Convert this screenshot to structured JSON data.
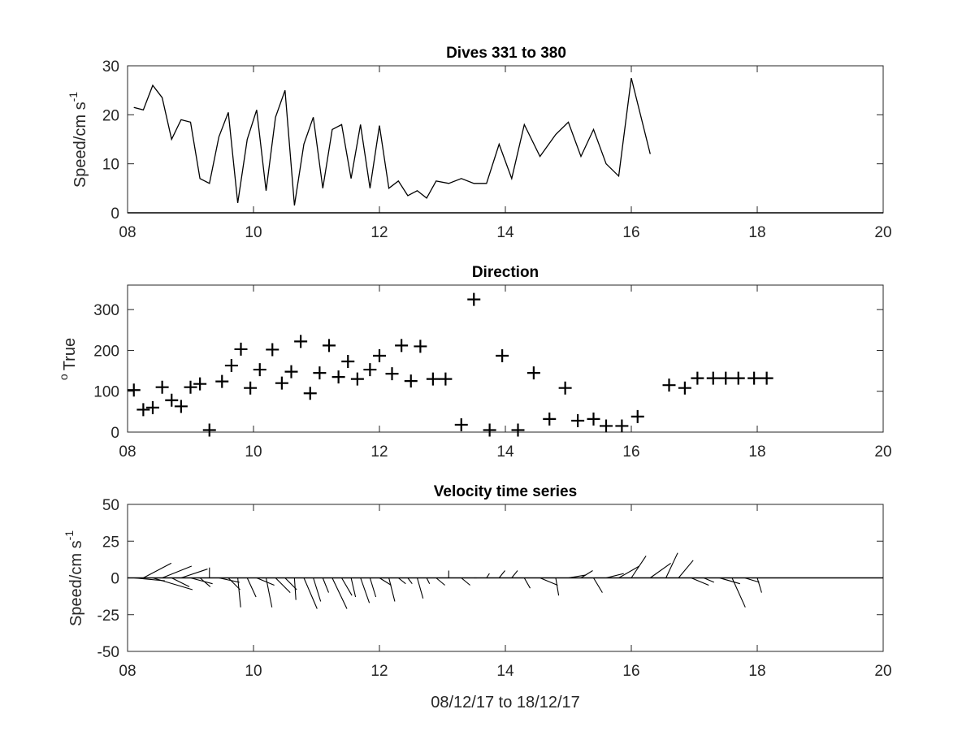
{
  "chart_data": [
    {
      "type": "line",
      "title": "Dives 331 to 380",
      "ylabel": "Speed/cm s",
      "ylabel_superscript": "-1",
      "xlabel": "",
      "xlim": [
        8,
        20
      ],
      "ylim": [
        0,
        30
      ],
      "xticks": [
        8,
        10,
        12,
        14,
        16,
        18,
        20
      ],
      "xtick_labels": [
        "08",
        "10",
        "12",
        "14",
        "16",
        "18",
        "20"
      ],
      "yticks": [
        0,
        10,
        20,
        30
      ],
      "ytick_labels": [
        "0",
        "10",
        "20",
        "30"
      ],
      "grid": false,
      "series": [
        {
          "x": [
            8.1,
            8.25,
            8.4,
            8.55,
            8.7,
            8.85,
            9.0,
            9.15,
            9.3,
            9.45,
            9.6,
            9.75,
            9.9,
            10.05,
            10.2,
            10.35,
            10.5,
            10.65,
            10.8,
            10.95,
            11.1,
            11.25,
            11.4,
            11.55,
            11.7,
            11.85,
            12.0,
            12.15,
            12.3,
            12.45,
            12.6,
            12.75,
            12.9,
            13.1,
            13.3,
            13.5,
            13.7,
            13.9,
            14.1,
            14.3,
            14.55,
            14.8,
            15.0,
            15.2,
            15.4,
            15.6,
            15.8,
            16.0,
            16.3,
            16.55,
            16.75,
            16.95,
            17.15,
            17.4,
            17.6,
            17.8,
            18.0
          ],
          "values": [
            21.5,
            21,
            26,
            23.5,
            15,
            19,
            18.5,
            7,
            6,
            15.5,
            20.5,
            2,
            15,
            21,
            4.5,
            19.5,
            25,
            1.5,
            14,
            19.5,
            5,
            17,
            18,
            7,
            18,
            5,
            17.8,
            5,
            6.5,
            3.5,
            4.5,
            3,
            6.5,
            6,
            7,
            6,
            6,
            14,
            7,
            18,
            11.5,
            16,
            18.5,
            11.5,
            17,
            10,
            7.5,
            27.5,
            12,
            null,
            null,
            null,
            null,
            null,
            null,
            null,
            null
          ]
        }
      ]
    },
    {
      "type": "scatter",
      "title": "Direction",
      "ylabel": "True",
      "ylabel_prefix_superscript": "o",
      "xlabel": "",
      "xlim": [
        8,
        20
      ],
      "ylim": [
        0,
        360
      ],
      "xticks": [
        8,
        10,
        12,
        14,
        16,
        18,
        20
      ],
      "xtick_labels": [
        "08",
        "10",
        "12",
        "14",
        "16",
        "18",
        "20"
      ],
      "yticks": [
        0,
        100,
        200,
        300
      ],
      "ytick_labels": [
        "0",
        "100",
        "200",
        "300"
      ],
      "marker": "+",
      "grid": false,
      "series": [
        {
          "x": [
            8.1,
            8.25,
            8.4,
            8.55,
            8.7,
            8.85,
            9.0,
            9.15,
            9.3,
            9.5,
            9.65,
            9.8,
            9.95,
            10.1,
            10.3,
            10.45,
            10.6,
            10.75,
            10.9,
            11.05,
            11.2,
            11.35,
            11.5,
            11.65,
            11.85,
            12.0,
            12.2,
            12.35,
            12.5,
            12.65,
            12.85,
            13.05,
            13.3,
            13.5,
            13.75,
            13.95,
            14.2,
            14.45,
            14.7,
            14.95,
            15.15,
            15.4,
            15.6,
            15.85,
            16.1,
            16.6,
            16.85,
            17.05,
            17.3,
            17.5,
            17.7,
            17.95,
            18.15
          ],
          "y": [
            103,
            55,
            60,
            110,
            78,
            63,
            110,
            118,
            5,
            124,
            163,
            203,
            108,
            153,
            202,
            120,
            148,
            222,
            95,
            145,
            212,
            135,
            173,
            130,
            153,
            187,
            143,
            212,
            125,
            210,
            130,
            130,
            18,
            325,
            5,
            187,
            5,
            145,
            32,
            108,
            28,
            32,
            15,
            15,
            38,
            115,
            108,
            132,
            132,
            132,
            132,
            132,
            132
          ]
        }
      ]
    },
    {
      "type": "quiver",
      "title": "Velocity time series",
      "ylabel": "Speed/cm s",
      "ylabel_superscript": "-1",
      "xlabel": "08/12/17 to 18/12/17",
      "xlim": [
        8,
        20
      ],
      "ylim": [
        -50,
        50
      ],
      "xticks": [
        8,
        10,
        12,
        14,
        16,
        18,
        20
      ],
      "xtick_labels": [
        "08",
        "10",
        "12",
        "14",
        "16",
        "18",
        "20"
      ],
      "yticks": [
        -50,
        -25,
        0,
        25,
        50
      ],
      "ytick_labels": [
        "-50",
        "-25",
        "0",
        "25",
        "50"
      ],
      "grid": false,
      "sticks": {
        "t": [
          8.1,
          8.25,
          8.4,
          8.55,
          8.7,
          8.85,
          9.0,
          9.15,
          9.3,
          9.45,
          9.6,
          9.75,
          9.9,
          10.05,
          10.2,
          10.35,
          10.5,
          10.65,
          10.8,
          10.95,
          11.1,
          11.25,
          11.4,
          11.55,
          11.7,
          11.85,
          12.0,
          12.15,
          12.3,
          12.45,
          12.6,
          12.75,
          12.9,
          13.1,
          13.3,
          13.5,
          13.7,
          13.9,
          14.1,
          14.3,
          14.55,
          14.8,
          15.0,
          15.2,
          15.4,
          15.6,
          15.8,
          16.0,
          16.3,
          16.55,
          16.75,
          16.95,
          17.15,
          17.4,
          17.6,
          17.8,
          18.0,
          18.2
        ],
        "u": [
          21,
          19,
          27,
          20,
          12,
          18,
          15,
          7,
          0,
          14,
          8,
          2,
          6,
          12,
          4,
          10,
          8,
          1,
          9,
          5,
          4,
          10,
          7,
          3,
          6,
          4,
          8,
          4,
          5,
          3,
          4,
          2,
          6,
          0,
          6,
          2,
          2,
          4,
          4,
          4,
          12,
          2,
          12,
          8,
          6,
          12,
          14,
          10,
          14,
          8,
          10,
          12,
          7,
          14,
          9,
          10,
          3,
          10
        ],
        "v": [
          -2,
          10,
          -8,
          8,
          -6,
          6,
          -4,
          -6,
          7,
          -3,
          -8,
          -20,
          -13,
          -5,
          -20,
          -10,
          -8,
          -15,
          -21,
          -16,
          -10,
          -21,
          -12,
          -13,
          -17,
          -13,
          -5,
          -16,
          -4,
          -4,
          -14,
          -4,
          -5,
          5,
          -5,
          0,
          3,
          5,
          5,
          -7,
          -5,
          -12,
          2,
          5,
          -10,
          3,
          8,
          15,
          10,
          17,
          12,
          -5,
          -3,
          -4,
          -20,
          -3,
          -10,
          0
        ]
      }
    }
  ]
}
